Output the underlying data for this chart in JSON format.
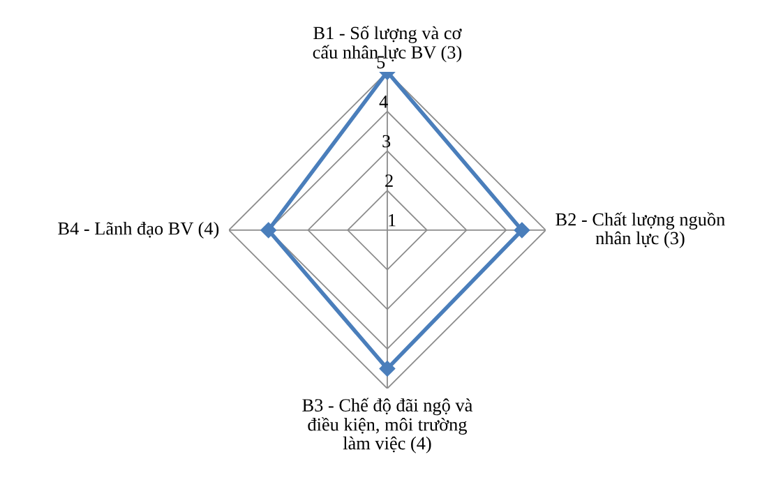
{
  "chart_data": {
    "type": "radar",
    "categories": [
      "B1 - Số lượng và cơ\ncấu nhân lực BV (3)",
      "B2 - Chất lượng nguồn\nnhân lực (3)",
      "B3 - Chế độ đãi ngộ và\nđiều kiện, môi trường\nlàm việc (4)",
      "B4 - Lãnh đạo BV (4)"
    ],
    "series": [
      {
        "color": "#4a7ebb",
        "values": [
          5,
          4.4,
          4.5,
          4.0
        ]
      }
    ],
    "ylim": [
      1,
      5
    ],
    "yticks": [
      1,
      2,
      3,
      4,
      5
    ],
    "grid": true,
    "marker": "diamond",
    "line_style": "solid"
  }
}
